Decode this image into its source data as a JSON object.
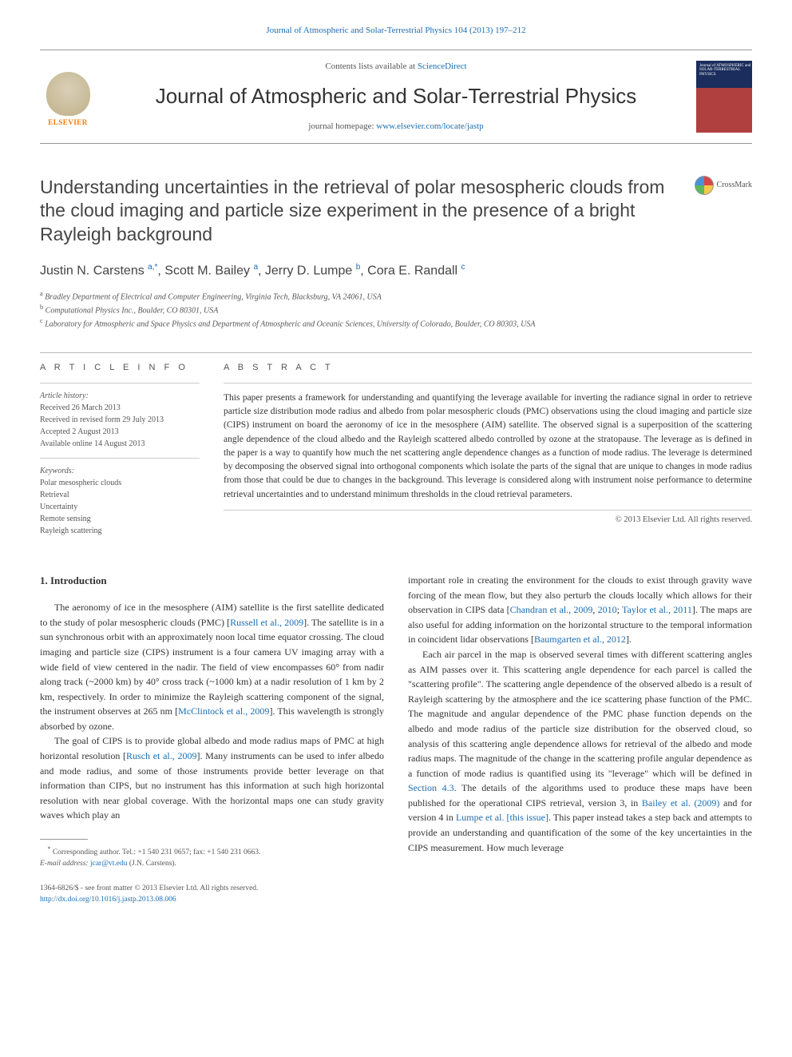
{
  "top_link": "Journal of Atmospheric and Solar-Terrestrial Physics 104 (2013) 197–212",
  "header": {
    "contents_prefix": "Contents lists available at ",
    "contents_link": "ScienceDirect",
    "journal_name": "Journal of Atmospheric and Solar-Terrestrial Physics",
    "homepage_prefix": "journal homepage: ",
    "homepage_link": "www.elsevier.com/locate/jastp",
    "elsevier_name": "ELSEVIER",
    "cover_text": "Journal of ATMOSPHERIC and SOLAR-TERRESTRIAL PHYSICS"
  },
  "crossmark_label": "CrossMark",
  "title": "Understanding uncertainties in the retrieval of polar mesospheric clouds from the cloud imaging and particle size experiment in the presence of a bright Rayleigh background",
  "authors_html": "Justin N. Carstens <sup>a,*</sup>, Scott M. Bailey <sup>a</sup>, Jerry D. Lumpe <sup>b</sup>, Cora E. Randall <sup>c</sup>",
  "affiliations": {
    "a": "Bradley Department of Electrical and Computer Engineering, Virginia Tech, Blacksburg, VA 24061, USA",
    "b": "Computational Physics Inc., Boulder, CO 80301, USA",
    "c": "Laboratory for Atmospheric and Space Physics and Department of Atmospheric and Oceanic Sciences, University of Colorado, Boulder, CO 80303, USA"
  },
  "info_header": "A R T I C L E   I N F O",
  "abstract_header": "A B S T R A C T",
  "history": {
    "label": "Article history:",
    "received": "Received 26 March 2013",
    "revised": "Received in revised form 29 July 2013",
    "accepted": "Accepted 2 August 2013",
    "online": "Available online 14 August 2013"
  },
  "keywords": {
    "label": "Keywords:",
    "items": [
      "Polar mesospheric clouds",
      "Retrieval",
      "Uncertainty",
      "Remote sensing",
      "Rayleigh scattering"
    ]
  },
  "abstract": "This paper presents a framework for understanding and quantifying the leverage available for inverting the radiance signal in order to retrieve particle size distribution mode radius and albedo from polar mesospheric clouds (PMC) observations using the cloud imaging and particle size (CIPS) instrument on board the aeronomy of ice in the mesosphere (AIM) satellite. The observed signal is a superposition of the scattering angle dependence of the cloud albedo and the Rayleigh scattered albedo controlled by ozone at the stratopause. The leverage as is defined in the paper is a way to quantify how much the net scattering angle dependence changes as a function of mode radius. The leverage is determined by decomposing the observed signal into orthogonal components which isolate the parts of the signal that are unique to changes in mode radius from those that could be due to changes in the background. This leverage is considered along with instrument noise performance to determine retrieval uncertainties and to understand minimum thresholds in the cloud retrieval parameters.",
  "copyright": "© 2013 Elsevier Ltd. All rights reserved.",
  "section1_heading": "1.  Introduction",
  "col1_p1": "The aeronomy of ice in the mesosphere (AIM) satellite is the first satellite dedicated to the study of polar mesospheric clouds (PMC) [Russell et al., 2009]. The satellite is in a sun synchronous orbit with an approximately noon local time equator crossing. The cloud imaging and particle size (CIPS) instrument is a four camera UV imaging array with a wide field of view centered in the nadir. The field of view encompasses 60° from nadir along track (~2000 km) by 40° cross track (~1000 km) at a nadir resolution of 1 km by 2 km, respectively. In order to minimize the Rayleigh scattering component of the signal, the instrument observes at 265 nm [McClintock et al., 2009]. This wavelength is strongly absorbed by ozone.",
  "col1_p2": "The goal of CIPS is to provide global albedo and mode radius maps of PMC at high horizontal resolution [Rusch et al., 2009]. Many instruments can be used to infer albedo and mode radius, and some of those instruments provide better leverage on that information than CIPS, but no instrument has this information at such high horizontal resolution with near global coverage. With the horizontal maps one can study gravity waves which play an",
  "col2_p1": "important role in creating the environment for the clouds to exist through gravity wave forcing of the mean flow, but they also perturb the clouds locally which allows for their observation in CIPS data [Chandran et al., 2009, 2010; Taylor et al., 2011]. The maps are also useful for adding information on the horizontal structure to the temporal information in coincident lidar observations [Baumgarten et al., 2012].",
  "col2_p2": "Each air parcel in the map is observed several times with different scattering angles as AIM passes over it. This scattering angle dependence for each parcel is called the \"scattering profile\". The scattering angle dependence of the observed albedo is a result of Rayleigh scattering by the atmosphere and the ice scattering phase function of the PMC. The magnitude and angular dependence of the PMC phase function depends on the albedo and mode radius of the particle size distribution for the observed cloud, so analysis of this scattering angle dependence allows for retrieval of the albedo and mode radius maps. The magnitude of the change in the scattering profile angular dependence as a function of mode radius is quantified using its \"leverage\" which will be defined in Section 4.3. The details of the algorithms used to produce these maps have been published for the operational CIPS retrieval, version 3, in Bailey et al. (2009) and for version 4 in Lumpe et al. [this issue]. This paper instead takes a step back and attempts to provide an understanding and quantification of the some of the key uncertainties in the CIPS measurement. How much leverage",
  "footnote": {
    "corr": "Corresponding author. Tel.: +1 540 231 0657; fax: +1 540 231 0663.",
    "email_label": "E-mail address: ",
    "email": "jcar@vt.edu",
    "email_suffix": " (J.N. Carstens)."
  },
  "bottom": {
    "issn_line": "1364-6826/$ - see front matter © 2013 Elsevier Ltd. All rights reserved.",
    "doi": "http://dx.doi.org/10.1016/j.jastp.2013.08.006"
  },
  "links": {
    "russell2009": "Russell et al., 2009",
    "mcclintock2009": "McClintock et al., 2009",
    "rusch2009": "Rusch et al., 2009",
    "chandran2009": "Chandran et al., 2009",
    "chandran2010": "2010",
    "taylor2011": "Taylor et al., 2011",
    "baumgarten2012": "Baumgarten et al., 2012",
    "section43": "Section 4.3",
    "bailey2009": "Bailey et al. (2009)",
    "lumpe": "Lumpe et al. [this issue]"
  },
  "colors": {
    "link": "#1a6db3",
    "text": "#333333",
    "muted": "#555555",
    "border": "#999999",
    "elsevier_orange": "#ff7700"
  }
}
